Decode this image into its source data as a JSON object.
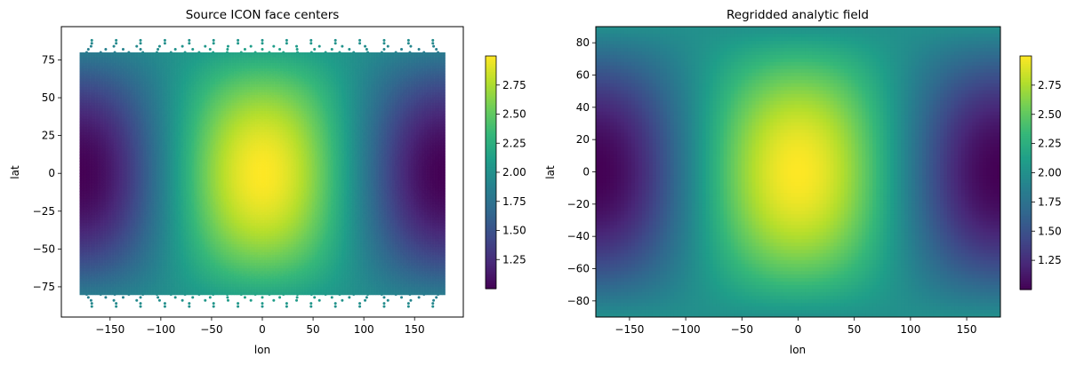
{
  "chart_data": [
    {
      "type": "scatter",
      "title": "Source ICON face centers",
      "xlabel": "lon",
      "ylabel": "lat",
      "xlim": [
        -198,
        198
      ],
      "ylim": [
        -95,
        97
      ],
      "xticks": [
        -150,
        -100,
        -50,
        0,
        50,
        100,
        150
      ],
      "yticks": [
        -75,
        -50,
        -25,
        0,
        25,
        50,
        75
      ],
      "field": "2 + cos(lat) * cos(lon)",
      "colormap": "viridis",
      "colorbar": {
        "range": [
          1.0,
          3.0
        ],
        "ticks": [
          1.25,
          1.5,
          1.75,
          2.0,
          2.25,
          2.5,
          2.75
        ],
        "tick_labels": [
          "1.25",
          "1.50",
          "1.75",
          "2.00",
          "2.25",
          "2.50",
          "2.75"
        ]
      },
      "grid": false
    },
    {
      "type": "heatmap",
      "title": "Regridded analytic field",
      "xlabel": "lon",
      "ylabel": "lat",
      "xlim": [
        -180,
        180
      ],
      "ylim": [
        -90,
        90
      ],
      "xticks": [
        -150,
        -100,
        -50,
        0,
        50,
        100,
        150
      ],
      "yticks": [
        -80,
        -60,
        -40,
        -20,
        0,
        20,
        40,
        60,
        80
      ],
      "field": "2 + cos(lat) * cos(lon)",
      "colormap": "viridis",
      "colorbar": {
        "range": [
          1.0,
          3.0
        ],
        "ticks": [
          1.25,
          1.5,
          1.75,
          2.0,
          2.25,
          2.5,
          2.75
        ],
        "tick_labels": [
          "1.25",
          "1.50",
          "1.75",
          "2.00",
          "2.25",
          "2.50",
          "2.75"
        ]
      },
      "grid": false
    }
  ]
}
